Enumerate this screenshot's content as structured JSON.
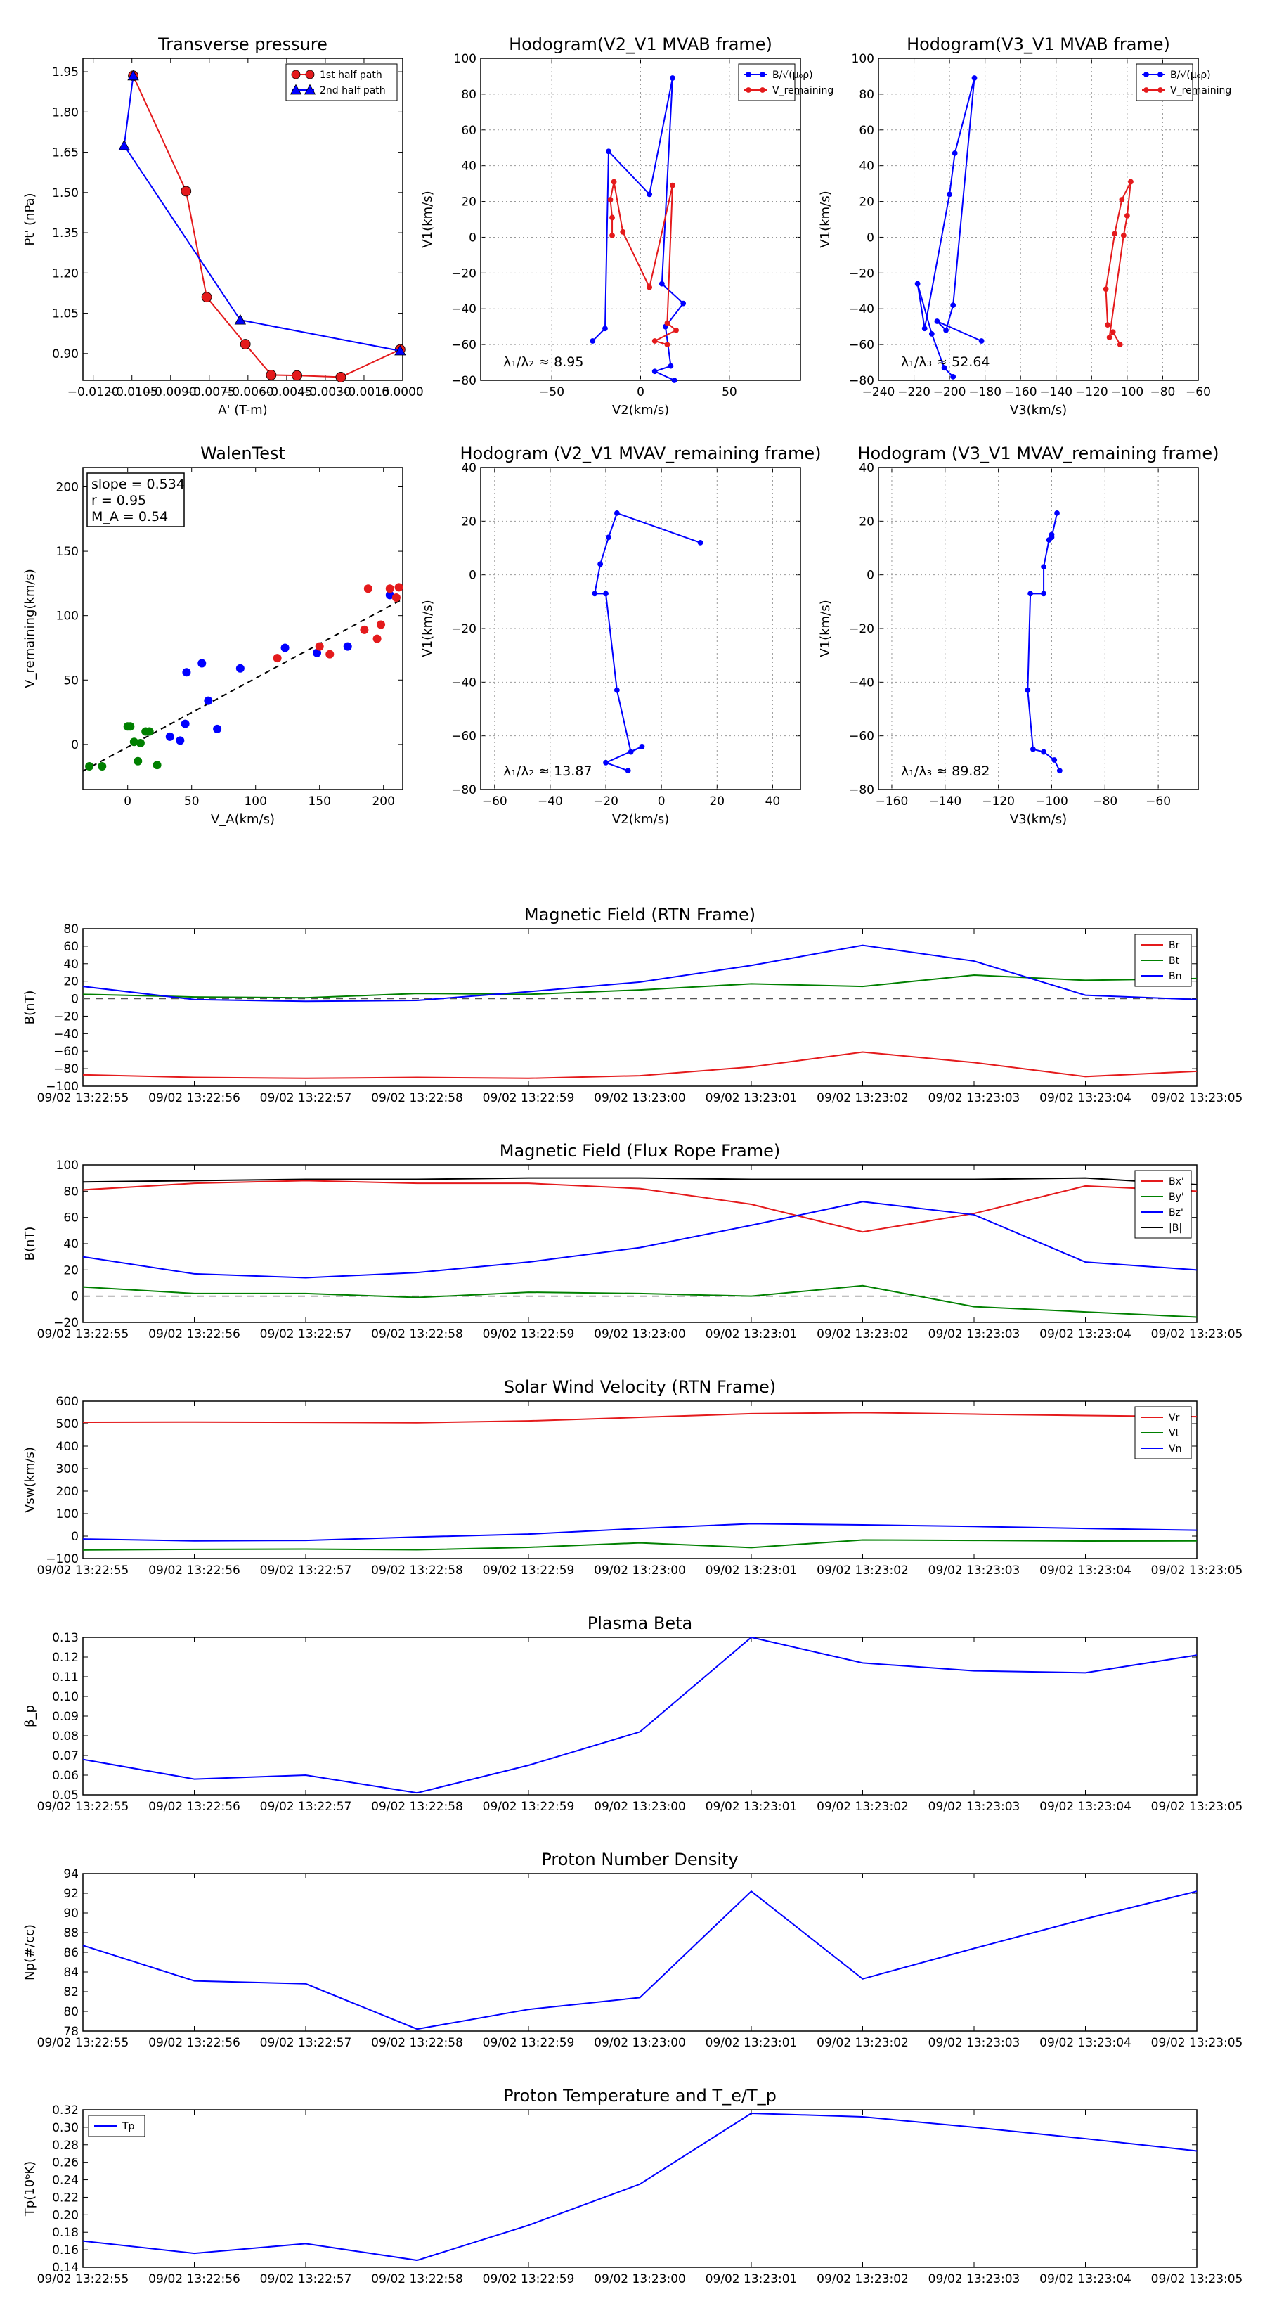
{
  "colors": {
    "red": "#e41a1c",
    "blue": "#0000ff",
    "green": "#008000",
    "black": "#000000",
    "grid": "#999999"
  },
  "chart_data": [
    {
      "id": "pt",
      "type": "line",
      "title": "Transverse pressure",
      "xlabel": "A' (T-m)",
      "ylabel": "Pt' (nPa)",
      "xlim": [
        -0.0124,
        0.0
      ],
      "ylim": [
        0.8,
        2.0
      ],
      "xticks": [
        "−0.0120",
        "−0.0105",
        "−0.0090",
        "−0.0075",
        "−0.0060",
        "−0.0045",
        "−0.0030",
        "−0.0015",
        "0.0000"
      ],
      "yticks": [
        "0.90",
        "1.05",
        "1.20",
        "1.35",
        "1.50",
        "1.65",
        "1.80",
        "1.95"
      ],
      "grid": false,
      "legend": "top-right",
      "series": [
        {
          "name": "1st half path",
          "color": "red",
          "marker": "circle",
          "x": [
            -0.01045,
            -0.0084,
            -0.0076,
            -0.0061,
            -0.0051,
            -0.0041,
            -0.0024,
            -0.0001
          ],
          "y": [
            1.935,
            1.505,
            1.11,
            0.935,
            0.82,
            0.818,
            0.812,
            0.915
          ]
        },
        {
          "name": "2nd half path",
          "color": "blue",
          "marker": "triangle",
          "x": [
            -0.0001,
            -0.0063,
            -0.0108,
            -0.01045
          ],
          "y": [
            0.91,
            1.025,
            1.675,
            1.935
          ]
        }
      ]
    },
    {
      "id": "h23",
      "type": "line",
      "title": "Hodogram(V2_V1 MVAB frame)",
      "xlabel": "V2(km/s)",
      "ylabel": "V1(km/s)",
      "xlim": [
        -90,
        90
      ],
      "ylim": [
        -80,
        100
      ],
      "xticks": [
        "−50",
        "0",
        "50"
      ],
      "xtick_values": [
        -50,
        0,
        50
      ],
      "yticks": [
        "−80",
        "−60",
        "−40",
        "−20",
        "0",
        "20",
        "40",
        "60",
        "80",
        "100"
      ],
      "ytick_values": [
        -80,
        -60,
        -40,
        -20,
        0,
        20,
        40,
        60,
        80,
        100
      ],
      "grid": true,
      "legend": "top-right",
      "annotation": "λ₁/λ₂ ≈ 8.95",
      "series": [
        {
          "name": "B/√(μ₀ρ)",
          "color": "blue",
          "x": [
            -27,
            -20,
            -18,
            5,
            18,
            12,
            24,
            14,
            17,
            8,
            19
          ],
          "y": [
            -58,
            -51,
            48,
            24,
            89,
            -26,
            -37,
            -50,
            -72,
            -75,
            -80
          ]
        },
        {
          "name": "V_remaining",
          "color": "red",
          "x": [
            -16,
            -16,
            -17,
            -15,
            -10,
            5,
            18,
            15,
            20,
            8,
            15
          ],
          "y": [
            1,
            11,
            21,
            31,
            3,
            -28,
            29,
            -48,
            -52,
            -58,
            -60
          ]
        }
      ]
    },
    {
      "id": "h13",
      "type": "line",
      "title": "Hodogram(V3_V1 MVAB frame)",
      "xlabel": "V3(km/s)",
      "ylabel": "V1(km/s)",
      "xlim": [
        -240,
        -60
      ],
      "ylim": [
        -80,
        100
      ],
      "xticks": [
        "−240",
        "−220",
        "−200",
        "−180",
        "−160",
        "−140",
        "−120",
        "−100",
        "−80",
        "−60"
      ],
      "xtick_values": [
        -240,
        -220,
        -200,
        -180,
        -160,
        -140,
        -120,
        -100,
        -80,
        -60
      ],
      "yticks": [
        "−80",
        "−60",
        "−40",
        "−20",
        "0",
        "20",
        "40",
        "60",
        "80",
        "100"
      ],
      "ytick_values": [
        -80,
        -60,
        -40,
        -20,
        0,
        20,
        40,
        60,
        80,
        100
      ],
      "grid": true,
      "legend": "top-right",
      "annotation": "λ₁/λ₃ ≈ 52.64",
      "series": [
        {
          "name": "B/√(μ₀ρ)",
          "color": "blue",
          "x": [
            -182,
            -207,
            -202,
            -198,
            -186,
            -197,
            -200,
            -214,
            -218,
            -210,
            -203,
            -198
          ],
          "y": [
            -58,
            -47,
            -52,
            -38,
            89,
            47,
            24,
            -51,
            -26,
            -54,
            -73,
            -78
          ]
        },
        {
          "name": "V_remaining",
          "color": "red",
          "x": [
            -111,
            -112,
            -107,
            -103,
            -98,
            -100,
            -102,
            -110,
            -108,
            -104
          ],
          "y": [
            -49,
            -29,
            2,
            21,
            31,
            12,
            1,
            -56,
            -53,
            -60
          ]
        }
      ]
    },
    {
      "id": "walen",
      "type": "scatter",
      "title": "WalenTest",
      "xlabel": "V_A(km/s)",
      "ylabel": "V_remaining(km/s)",
      "xlim": [
        -35,
        215
      ],
      "ylim": [
        -35,
        215
      ],
      "xticks": [
        "0",
        "50",
        "100",
        "150",
        "200"
      ],
      "xtick_values": [
        0,
        50,
        100,
        150,
        200
      ],
      "yticks": [
        "0",
        "50",
        "100",
        "150",
        "200"
      ],
      "ytick_values": [
        0,
        50,
        100,
        150,
        200
      ],
      "grid": false,
      "annotation_lines": [
        "slope = 0.534",
        "r = 0.95",
        "M_A = 0.54"
      ],
      "fit": {
        "slope": 0.534,
        "intercept": -2
      },
      "groups": [
        {
          "color": "green",
          "x": [
            -30,
            -20,
            0,
            2,
            8,
            10,
            14,
            17,
            23,
            5
          ],
          "y": [
            -17,
            -17,
            14,
            14,
            -13,
            1,
            10,
            10,
            -16,
            2
          ]
        },
        {
          "color": "blue",
          "x": [
            33,
            41,
            45,
            46,
            58,
            63,
            70,
            88,
            123,
            148,
            172,
            205
          ],
          "y": [
            6,
            3,
            16,
            56,
            63,
            34,
            12,
            59,
            75,
            71,
            76,
            116
          ]
        },
        {
          "color": "red",
          "x": [
            117,
            150,
            158,
            185,
            188,
            195,
            198,
            205,
            210,
            212
          ],
          "y": [
            67,
            76,
            70,
            89,
            121,
            82,
            93,
            121,
            114,
            122
          ]
        }
      ]
    },
    {
      "id": "h23r",
      "type": "line",
      "title": "Hodogram (V2_V1 MVAV_remaining frame)",
      "xlabel": "V2(km/s)",
      "ylabel": "V1(km/s)",
      "xlim": [
        -65,
        50
      ],
      "ylim": [
        -80,
        40
      ],
      "xticks": [
        "−60",
        "−40",
        "−20",
        "0",
        "20",
        "40"
      ],
      "xtick_values": [
        -60,
        -40,
        -20,
        0,
        20,
        40
      ],
      "yticks": [
        "−80",
        "−60",
        "−40",
        "−20",
        "0",
        "20",
        "40"
      ],
      "ytick_values": [
        -80,
        -60,
        -40,
        -20,
        0,
        20,
        40
      ],
      "grid": true,
      "annotation": "λ₁/λ₂ ≈ 13.87",
      "series": [
        {
          "name": "",
          "color": "blue",
          "x": [
            -12,
            -20,
            -7,
            -11,
            -16,
            -20,
            -24,
            -22,
            -19,
            -16,
            14
          ],
          "y": [
            -73,
            -70,
            -64,
            -66,
            -43,
            -7,
            -7,
            4,
            14,
            23,
            12
          ]
        }
      ]
    },
    {
      "id": "h13r",
      "type": "line",
      "title": "Hodogram (V3_V1 MVAV_remaining frame)",
      "xlabel": "V3(km/s)",
      "ylabel": "V1(km/s)",
      "xlim": [
        -165,
        -45
      ],
      "ylim": [
        -80,
        40
      ],
      "xticks": [
        "−160",
        "−140",
        "−120",
        "−100",
        "−80",
        "−60"
      ],
      "xtick_values": [
        -160,
        -140,
        -120,
        -100,
        -80,
        -60
      ],
      "yticks": [
        "−80",
        "−60",
        "−40",
        "−20",
        "0",
        "20",
        "40"
      ],
      "ytick_values": [
        -80,
        -60,
        -40,
        -20,
        0,
        20,
        40
      ],
      "grid": true,
      "annotation": "λ₁/λ₃ ≈ 89.82",
      "series": [
        {
          "name": "",
          "color": "blue",
          "x": [
            -97,
            -99,
            -103,
            -107,
            -109,
            -108,
            -103,
            -103,
            -101,
            -100,
            -100,
            -98
          ],
          "y": [
            -73,
            -69,
            -66,
            -65,
            -43,
            -7,
            -7,
            3,
            13,
            15,
            14,
            23
          ]
        }
      ]
    },
    {
      "id": "brtn",
      "type": "line",
      "title": "Magnetic Field (RTN Frame)",
      "ylabel": "B(nT)",
      "ylim": [
        -100,
        80
      ],
      "yticks": [
        "−100",
        "−80",
        "−60",
        "−40",
        "−20",
        "0",
        "20",
        "40",
        "60",
        "80"
      ],
      "ytick_values": [
        -100,
        -80,
        -60,
        -40,
        -20,
        0,
        20,
        40,
        60,
        80
      ],
      "zero_line": true,
      "legend": "top-right",
      "categories": [
        "09/02 13:22:55",
        "09/02 13:22:56",
        "09/02 13:22:57",
        "09/02 13:22:58",
        "09/02 13:22:59",
        "09/02 13:23:00",
        "09/02 13:23:01",
        "09/02 13:23:02",
        "09/02 13:23:03",
        "09/02 13:23:04",
        "09/02 13:23:05"
      ],
      "series": [
        {
          "name": "Br",
          "color": "red",
          "values": [
            -87,
            -90,
            -91,
            -90,
            -91,
            -88,
            -78,
            -61,
            -73,
            -89,
            -83
          ]
        },
        {
          "name": "Bt",
          "color": "green",
          "values": [
            5,
            2,
            1,
            6,
            5,
            10,
            17,
            14,
            27,
            21,
            23
          ]
        },
        {
          "name": "Bn",
          "color": "blue",
          "values": [
            14,
            -1,
            -3,
            -2,
            8,
            19,
            38,
            61,
            43,
            4,
            -1
          ]
        }
      ]
    },
    {
      "id": "bfr",
      "type": "line",
      "title": "Magnetic Field (Flux Rope Frame)",
      "ylabel": "B(nT)",
      "ylim": [
        -20,
        100
      ],
      "yticks": [
        "−20",
        "0",
        "20",
        "40",
        "60",
        "80",
        "100"
      ],
      "ytick_values": [
        -20,
        0,
        20,
        40,
        60,
        80,
        100
      ],
      "zero_line": true,
      "legend": "top-right",
      "categories": [
        "09/02 13:22:55",
        "09/02 13:22:56",
        "09/02 13:22:57",
        "09/02 13:22:58",
        "09/02 13:22:59",
        "09/02 13:23:00",
        "09/02 13:23:01",
        "09/02 13:23:02",
        "09/02 13:23:03",
        "09/02 13:23:04",
        "09/02 13:23:05"
      ],
      "series": [
        {
          "name": "Bx'",
          "color": "red",
          "values": [
            81,
            86,
            88,
            86,
            86,
            82,
            70,
            49,
            63,
            84,
            80
          ]
        },
        {
          "name": "By'",
          "color": "green",
          "values": [
            7,
            2,
            2,
            -1,
            3,
            2,
            0,
            8,
            -8,
            -12,
            -16
          ]
        },
        {
          "name": "Bz'",
          "color": "blue",
          "values": [
            30,
            17,
            14,
            18,
            26,
            37,
            54,
            72,
            62,
            26,
            20
          ]
        },
        {
          "name": "|B|",
          "color": "black",
          "values": [
            87,
            88,
            89,
            89,
            90,
            90,
            89,
            89,
            89,
            90,
            85
          ]
        }
      ]
    },
    {
      "id": "vsw",
      "type": "line",
      "title": "Solar Wind Velocity (RTN Frame)",
      "ylabel": "Vsw(km/s)",
      "ylim": [
        -100,
        600
      ],
      "yticks": [
        "−100",
        "0",
        "100",
        "200",
        "300",
        "400",
        "500",
        "600"
      ],
      "ytick_values": [
        -100,
        0,
        100,
        200,
        300,
        400,
        500,
        600
      ],
      "legend": "top-right",
      "categories": [
        "09/02 13:22:55",
        "09/02 13:22:56",
        "09/02 13:22:57",
        "09/02 13:22:58",
        "09/02 13:22:59",
        "09/02 13:23:00",
        "09/02 13:23:01",
        "09/02 13:23:02",
        "09/02 13:23:03",
        "09/02 13:23:04",
        "09/02 13:23:05"
      ],
      "series": [
        {
          "name": "Vr",
          "color": "red",
          "values": [
            506,
            507,
            506,
            504,
            512,
            528,
            544,
            549,
            542,
            536,
            531
          ]
        },
        {
          "name": "Vt",
          "color": "green",
          "values": [
            -62,
            -59,
            -58,
            -61,
            -50,
            -30,
            -51,
            -17,
            -19,
            -22,
            -21
          ]
        },
        {
          "name": "Vn",
          "color": "blue",
          "values": [
            -13,
            -21,
            -19,
            -4,
            9,
            34,
            55,
            50,
            43,
            34,
            26
          ]
        }
      ]
    },
    {
      "id": "beta",
      "type": "line",
      "title": "Plasma Beta",
      "ylabel": "β_p",
      "ylim": [
        0.05,
        0.13
      ],
      "yticks": [
        "0.05",
        "0.06",
        "0.07",
        "0.08",
        "0.09",
        "0.10",
        "0.11",
        "0.12",
        "0.13"
      ],
      "ytick_values": [
        0.05,
        0.06,
        0.07,
        0.08,
        0.09,
        0.1,
        0.11,
        0.12,
        0.13
      ],
      "categories": [
        "09/02 13:22:55",
        "09/02 13:22:56",
        "09/02 13:22:57",
        "09/02 13:22:58",
        "09/02 13:22:59",
        "09/02 13:23:00",
        "09/02 13:23:01",
        "09/02 13:23:02",
        "09/02 13:23:03",
        "09/02 13:23:04",
        "09/02 13:23:05"
      ],
      "series": [
        {
          "name": "",
          "color": "blue",
          "values": [
            0.068,
            0.058,
            0.06,
            0.051,
            0.065,
            0.082,
            0.13,
            0.117,
            0.113,
            0.112,
            0.121
          ]
        }
      ]
    },
    {
      "id": "np",
      "type": "line",
      "title": "Proton Number Density",
      "ylabel": "Np(#/cc)",
      "ylim": [
        78,
        94
      ],
      "yticks": [
        "78",
        "80",
        "82",
        "84",
        "86",
        "88",
        "90",
        "92",
        "94"
      ],
      "ytick_values": [
        78,
        80,
        82,
        84,
        86,
        88,
        90,
        92,
        94
      ],
      "categories": [
        "09/02 13:22:55",
        "09/02 13:22:56",
        "09/02 13:22:57",
        "09/02 13:22:58",
        "09/02 13:22:59",
        "09/02 13:23:00",
        "09/02 13:23:01",
        "09/02 13:23:02",
        "09/02 13:23:03",
        "09/02 13:23:04",
        "09/02 13:23:05"
      ],
      "series": [
        {
          "name": "",
          "color": "blue",
          "values": [
            86.7,
            83.1,
            82.8,
            78.2,
            80.2,
            81.4,
            92.2,
            83.3,
            86.4,
            89.4,
            92.2
          ]
        }
      ]
    },
    {
      "id": "tp",
      "type": "line",
      "title": "Proton Temperature and T_e/T_p",
      "ylabel": "Tp(10⁶K)",
      "ylim": [
        0.14,
        0.32
      ],
      "yticks": [
        "0.14",
        "0.16",
        "0.18",
        "0.20",
        "0.22",
        "0.24",
        "0.26",
        "0.28",
        "0.30",
        "0.32"
      ],
      "ytick_values": [
        0.14,
        0.16,
        0.18,
        0.2,
        0.22,
        0.24,
        0.26,
        0.28,
        0.3,
        0.32
      ],
      "legend": "top-left",
      "categories": [
        "09/02 13:22:55",
        "09/02 13:22:56",
        "09/02 13:22:57",
        "09/02 13:22:58",
        "09/02 13:22:59",
        "09/02 13:23:00",
        "09/02 13:23:01",
        "09/02 13:23:02",
        "09/02 13:23:03",
        "09/02 13:23:04",
        "09/02 13:23:05"
      ],
      "series": [
        {
          "name": "Tp",
          "color": "blue",
          "values": [
            0.17,
            0.156,
            0.167,
            0.148,
            0.188,
            0.235,
            0.316,
            0.312,
            0.3,
            0.287,
            0.273
          ]
        }
      ]
    }
  ]
}
